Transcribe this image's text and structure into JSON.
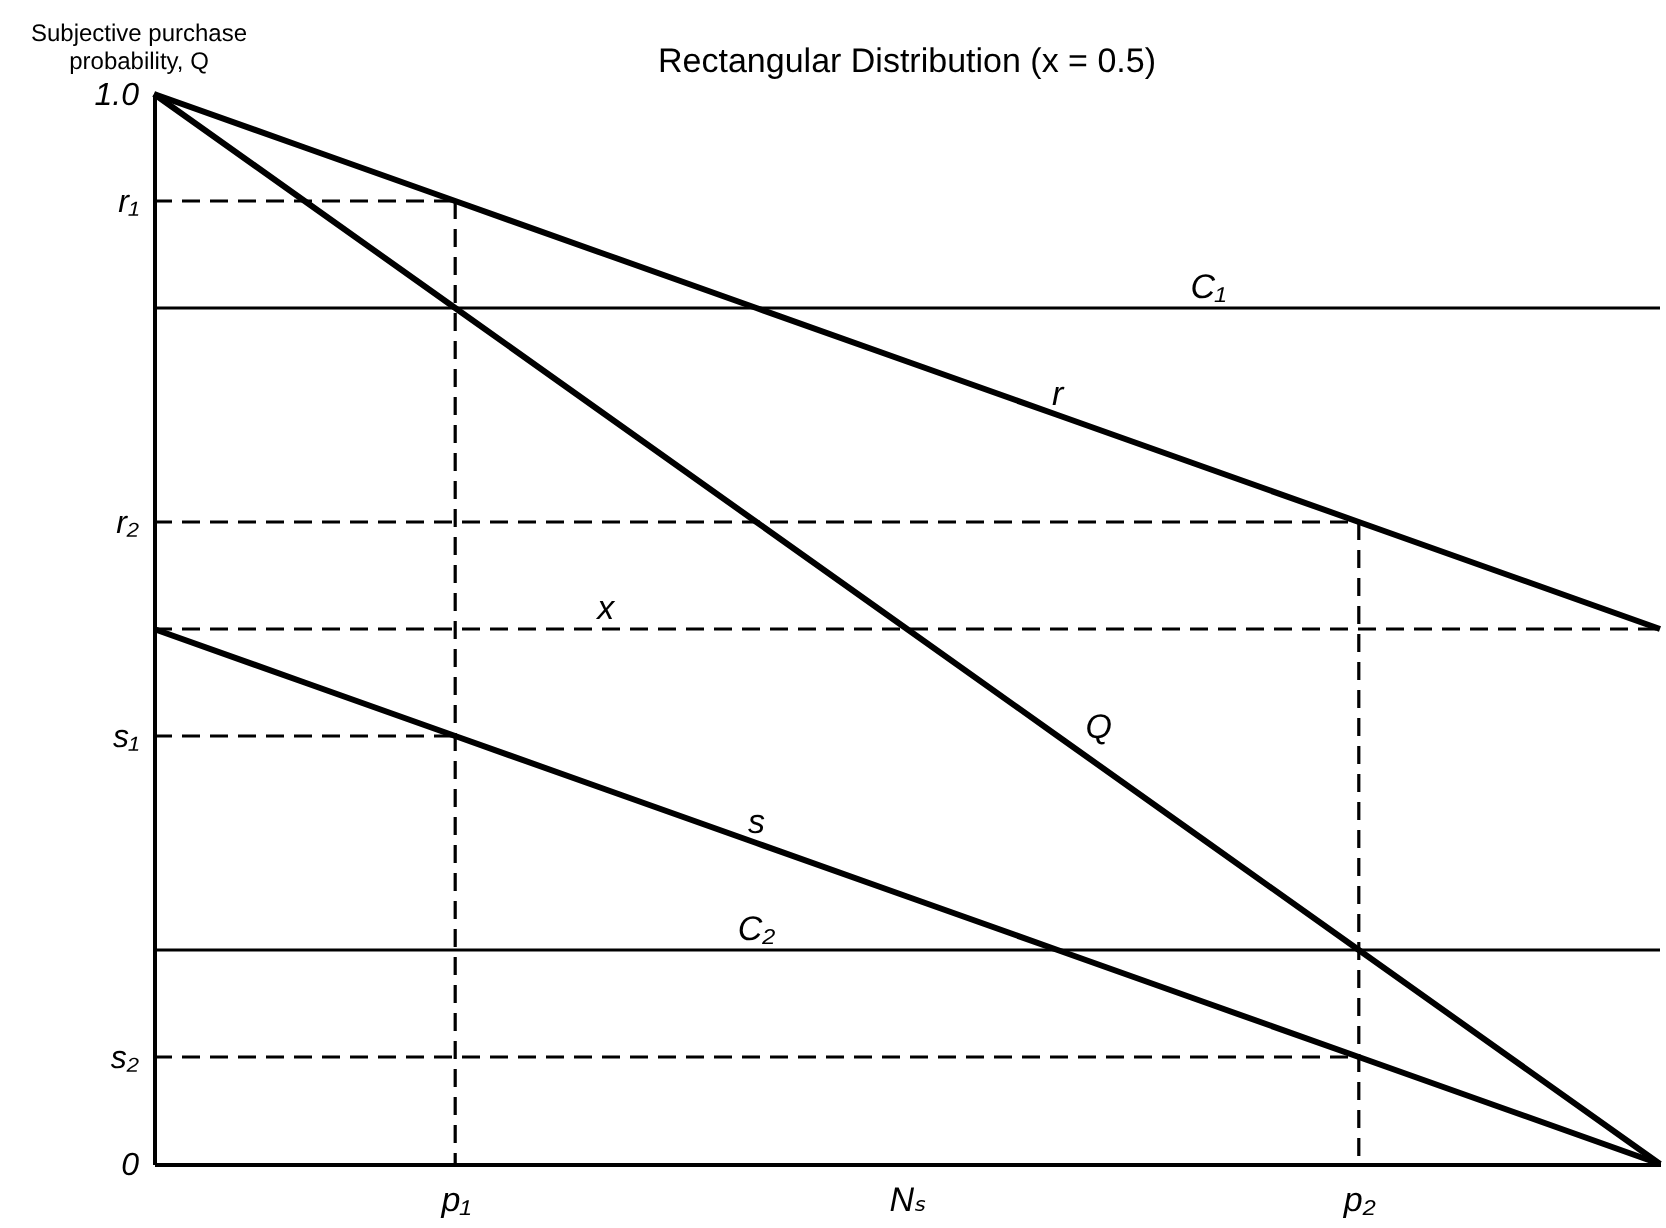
{
  "chart_data": {
    "type": "line",
    "title": "Rectangular Distribution (x = 0.5)",
    "ylabel": "Subjective purchase probability, Q",
    "categories": [
      null,
      null,
      "p₁",
      null,
      null,
      "Nₛ",
      null,
      null,
      "p₂",
      null,
      null
    ],
    "ylim": [
      0,
      1
    ],
    "yticks": [
      0,
      {
        "value": 0.1,
        "label": "s₂"
      },
      {
        "value": 0.4,
        "label": "s₁"
      },
      {
        "value": 0.6,
        "label": "r₂"
      },
      {
        "value": 0.9,
        "label": "r₁"
      },
      {
        "value": 1,
        "label": "1.0"
      }
    ],
    "grid": false,
    "legend": false,
    "marker": "none",
    "series": [
      {
        "name": "r",
        "color": "#000000",
        "values": [
          1,
          0.95,
          0.9,
          0.85,
          0.8,
          0.75,
          0.7,
          0.65,
          0.6,
          0.55,
          0.5
        ]
      },
      {
        "name": "Q",
        "color": "#000000",
        "values": [
          1,
          0.9,
          0.8,
          0.7,
          0.6,
          0.5,
          0.4,
          0.3,
          0.2,
          0.1,
          0
        ]
      },
      {
        "name": "s",
        "color": "#000000",
        "values": [
          0.5,
          0.45,
          0.4,
          0.35,
          0.3,
          0.25,
          0.2,
          0.15,
          0.1,
          0.05,
          0
        ]
      },
      {
        "name": "C₁",
        "color": "#000000",
        "values": [
          0.8,
          0.8,
          0.8,
          0.8,
          0.8,
          0.8,
          0.8,
          0.8,
          0.8,
          0.8,
          0.8
        ]
      },
      {
        "name": "C₂",
        "color": "#000000",
        "values": [
          0.2,
          0.2,
          0.2,
          0.2,
          0.2,
          0.2,
          0.2,
          0.2,
          0.2,
          0.2,
          0.2
        ]
      },
      {
        "name": "x",
        "color": "#000000",
        "line_style": "dashed",
        "values": [
          0.5,
          0.5,
          0.5,
          0.5,
          0.5,
          0.5,
          0.5,
          0.5,
          0.5,
          0.5,
          0.5
        ]
      },
      {
        "color": "#000000",
        "line_style": "dashed",
        "values": [
          0.9,
          0.9,
          0.9,
          null,
          null,
          null,
          null,
          null,
          null,
          null,
          null
        ]
      },
      {
        "color": "#000000",
        "line_style": "dashed",
        "x": [
          "p₁",
          "p₁"
        ],
        "values": [
          0.9,
          0
        ]
      },
      {
        "color": "#000000",
        "line_style": "dashed",
        "values": [
          0.4,
          0.4,
          0.4,
          null,
          null,
          null,
          null,
          null,
          null,
          null,
          null
        ]
      },
      {
        "color": "#000000",
        "line_style": "dashed",
        "values": [
          0.6,
          0.6,
          0.6,
          0.6,
          0.6,
          0.6,
          0.6,
          0.6,
          0.6,
          null,
          null
        ]
      },
      {
        "color": "#000000",
        "line_style": "dashed",
        "x": [
          "p₂",
          "p₂"
        ],
        "values": [
          0.6,
          0
        ]
      },
      {
        "color": "#000000",
        "line_style": "dashed",
        "values": [
          0.1,
          0.1,
          0.1,
          0.1,
          0.1,
          0.1,
          0.1,
          0.1,
          0.1,
          null,
          null
        ]
      }
    ]
  }
}
